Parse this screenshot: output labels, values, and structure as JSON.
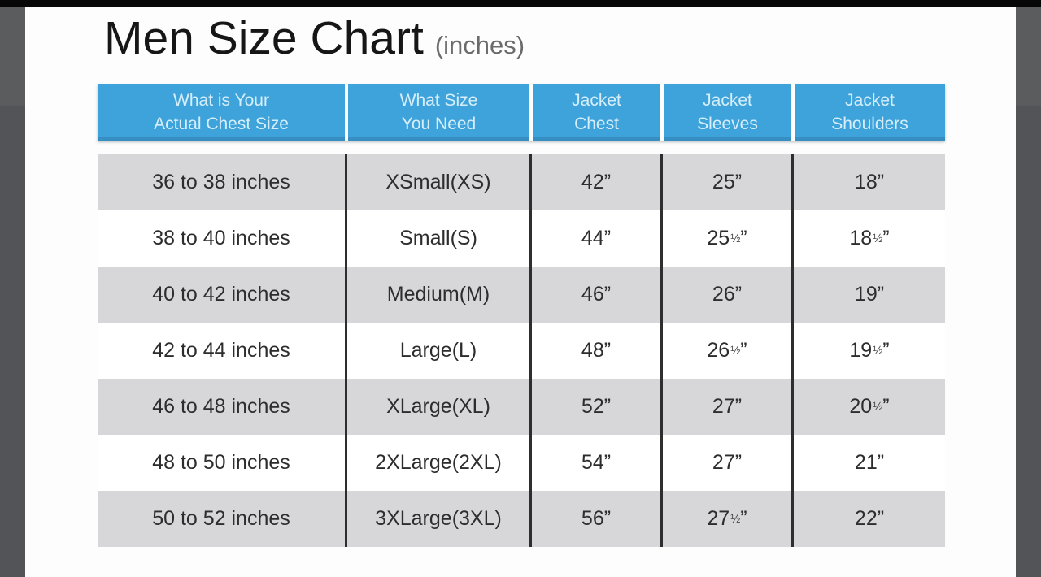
{
  "page": {
    "title": "Men Size Chart",
    "subtitle": "(inches)"
  },
  "table": {
    "headers": [
      [
        "What is Your",
        "Actual Chest Size"
      ],
      [
        "What Size",
        "You Need"
      ],
      [
        "Jacket",
        "Chest"
      ],
      [
        "Jacket",
        "Sleeves"
      ],
      [
        "Jacket",
        "Shoulders"
      ]
    ],
    "rows": [
      [
        "36 to 38 inches",
        "XSmall(XS)",
        "42”",
        "25”",
        "18”"
      ],
      [
        "38 to 40 inches",
        "Small(S)",
        "44”",
        "25½”",
        "18½”"
      ],
      [
        "40 to 42 inches",
        "Medium(M)",
        "46”",
        "26”",
        "19”"
      ],
      [
        "42 to 44 inches",
        "Large(L)",
        "48”",
        "26½”",
        "19½”"
      ],
      [
        "46 to 48 inches",
        "XLarge(XL)",
        "52”",
        "27”",
        "20½”"
      ],
      [
        "48 to 50 inches",
        "2XLarge(2XL)",
        "54”",
        "27”",
        "21”"
      ],
      [
        "50 to 52 inches",
        "3XLarge(3XL)",
        "56”",
        "27½”",
        "22”"
      ]
    ],
    "colors": {
      "header_bg": "#3fa3db",
      "header_text": "#d6eefa",
      "row_alt_bg": "#d7d7d9",
      "line": "#2e2e2e"
    }
  },
  "chart_data": {
    "type": "table",
    "title": "Men Size Chart (inches)",
    "units": "inches",
    "columns": [
      "What is Your Actual Chest Size",
      "What Size You Need",
      "Jacket Chest",
      "Jacket Sleeves",
      "Jacket Shoulders"
    ],
    "rows": [
      [
        "36 to 38 inches",
        "XSmall(XS)",
        42,
        25,
        18
      ],
      [
        "38 to 40 inches",
        "Small(S)",
        44,
        25.5,
        18.5
      ],
      [
        "40 to 42 inches",
        "Medium(M)",
        46,
        26,
        19
      ],
      [
        "42 to 44 inches",
        "Large(L)",
        48,
        26.5,
        19.5
      ],
      [
        "46 to 48 inches",
        "XLarge(XL)",
        52,
        27,
        20.5
      ],
      [
        "48 to 50 inches",
        "2XLarge(2XL)",
        54,
        27,
        21
      ],
      [
        "50 to 52 inches",
        "3XLarge(3XL)",
        56,
        27.5,
        22
      ]
    ]
  }
}
